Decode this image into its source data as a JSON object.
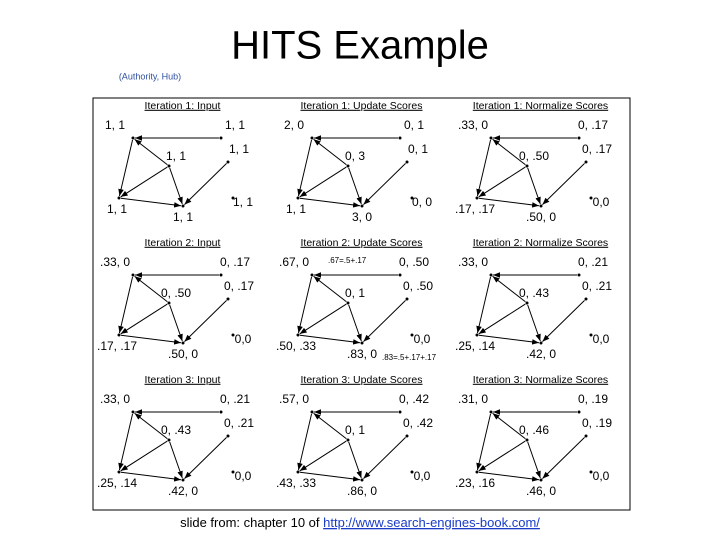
{
  "header": {
    "title": "HITS Example",
    "legend": "(Authority, Hub)"
  },
  "panels": [
    {
      "title": "Iteration 1: Input",
      "nodes": [
        "1, 1",
        "1, 1",
        "1, 1",
        "1, 1",
        "1, 1",
        "1, 1",
        "1, 1"
      ]
    },
    {
      "title": "Iteration 1: Update Scores",
      "nodes": [
        "2, 0",
        "0, 1",
        "0, 3",
        "0, 1",
        "1, 1",
        "3, 0",
        "0, 0"
      ]
    },
    {
      "title": "Iteration 1: Normalize Scores",
      "nodes": [
        ".33, 0",
        "0, .17",
        "0, .50",
        "0, .17",
        ".17, .17",
        ".50, 0",
        "0,0"
      ]
    },
    {
      "title": "Iteration 2: Input",
      "nodes": [
        ".33, 0",
        "0, .17",
        "0, .50",
        "0, .17",
        ".17, .17",
        ".50, 0",
        "0,0"
      ]
    },
    {
      "title": "Iteration 2: Update Scores",
      "nodes": [
        ".67, 0",
        "0, .50",
        "0, 1",
        "0, .50",
        ".50, .33",
        ".83, 0",
        "0,0"
      ],
      "notes": [
        ".67=.5+.17",
        ".83=.5+.17+.17"
      ]
    },
    {
      "title": "Iteration 2: Normalize Scores",
      "nodes": [
        ".33, 0",
        "0, .21",
        "0, .43",
        "0, .21",
        ".25, .14",
        ".42, 0",
        "0,0"
      ]
    },
    {
      "title": "Iteration 3: Input",
      "nodes": [
        ".33, 0",
        "0, .21",
        "0, .43",
        "0, .21",
        ".25, .14",
        ".42, 0",
        "0,0"
      ]
    },
    {
      "title": "Iteration 3: Update Scores",
      "nodes": [
        ".57, 0",
        "0, .42",
        "0, 1",
        "0, .42",
        ".43, .33",
        ".86, 0",
        "0,0"
      ]
    },
    {
      "title": "Iteration 3: Normalize Scores",
      "nodes": [
        ".31, 0",
        "0, .19",
        "0, .46",
        "0, .19",
        ".23, .16",
        ".46, 0",
        "0,0"
      ]
    }
  ],
  "footer": {
    "text": "slide from: chapter 10 of ",
    "link": "http://www.search-engines-book.com/"
  }
}
